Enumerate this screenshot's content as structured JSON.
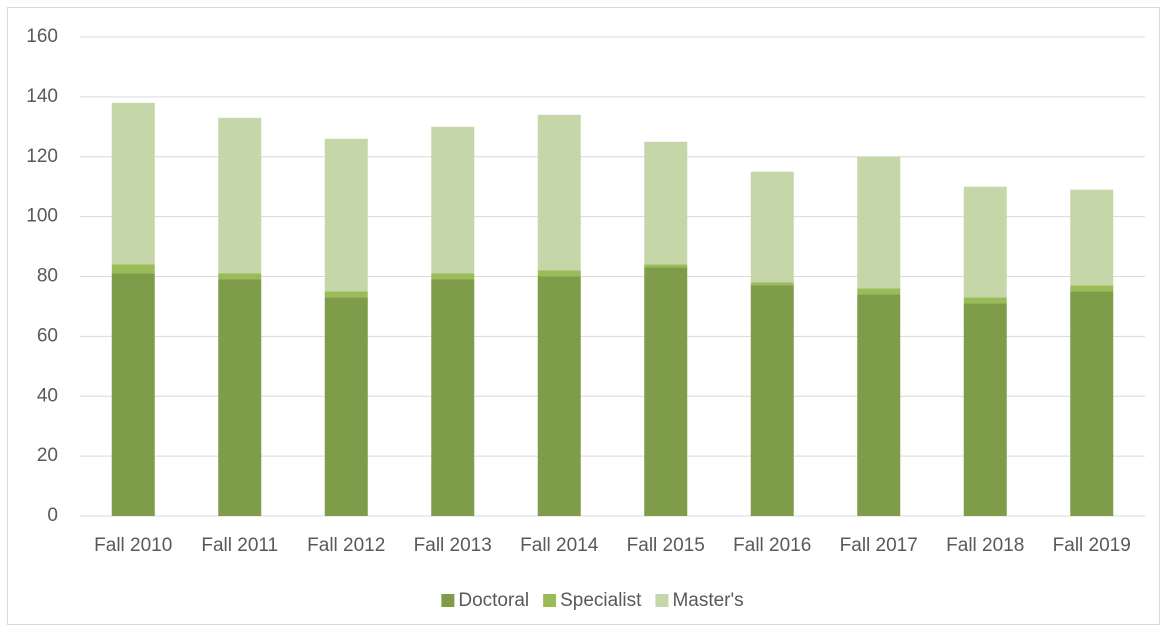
{
  "chart_data": {
    "type": "stacked_bar",
    "categories": [
      "Fall 2010",
      "Fall 2011",
      "Fall 2012",
      "Fall 2013",
      "Fall 2014",
      "Fall 2015",
      "Fall 2016",
      "Fall 2017",
      "Fall 2018",
      "Fall 2019"
    ],
    "series": [
      {
        "name": "Doctoral",
        "color": "#7f9c4a",
        "values": [
          81,
          79,
          73,
          79,
          80,
          83,
          77,
          74,
          71,
          75
        ]
      },
      {
        "name": "Specialist",
        "color": "#9bbb59",
        "values": [
          3,
          2,
          2,
          2,
          2,
          1,
          1,
          2,
          2,
          2
        ]
      },
      {
        "name": "Master's",
        "color": "#c5d6a9",
        "values": [
          54,
          52,
          51,
          49,
          52,
          41,
          37,
          44,
          37,
          32
        ]
      }
    ],
    "ylim": [
      0,
      160
    ],
    "yticks": [
      0,
      20,
      40,
      60,
      80,
      100,
      120,
      140,
      160
    ],
    "grid": true,
    "legend": "bottom"
  }
}
